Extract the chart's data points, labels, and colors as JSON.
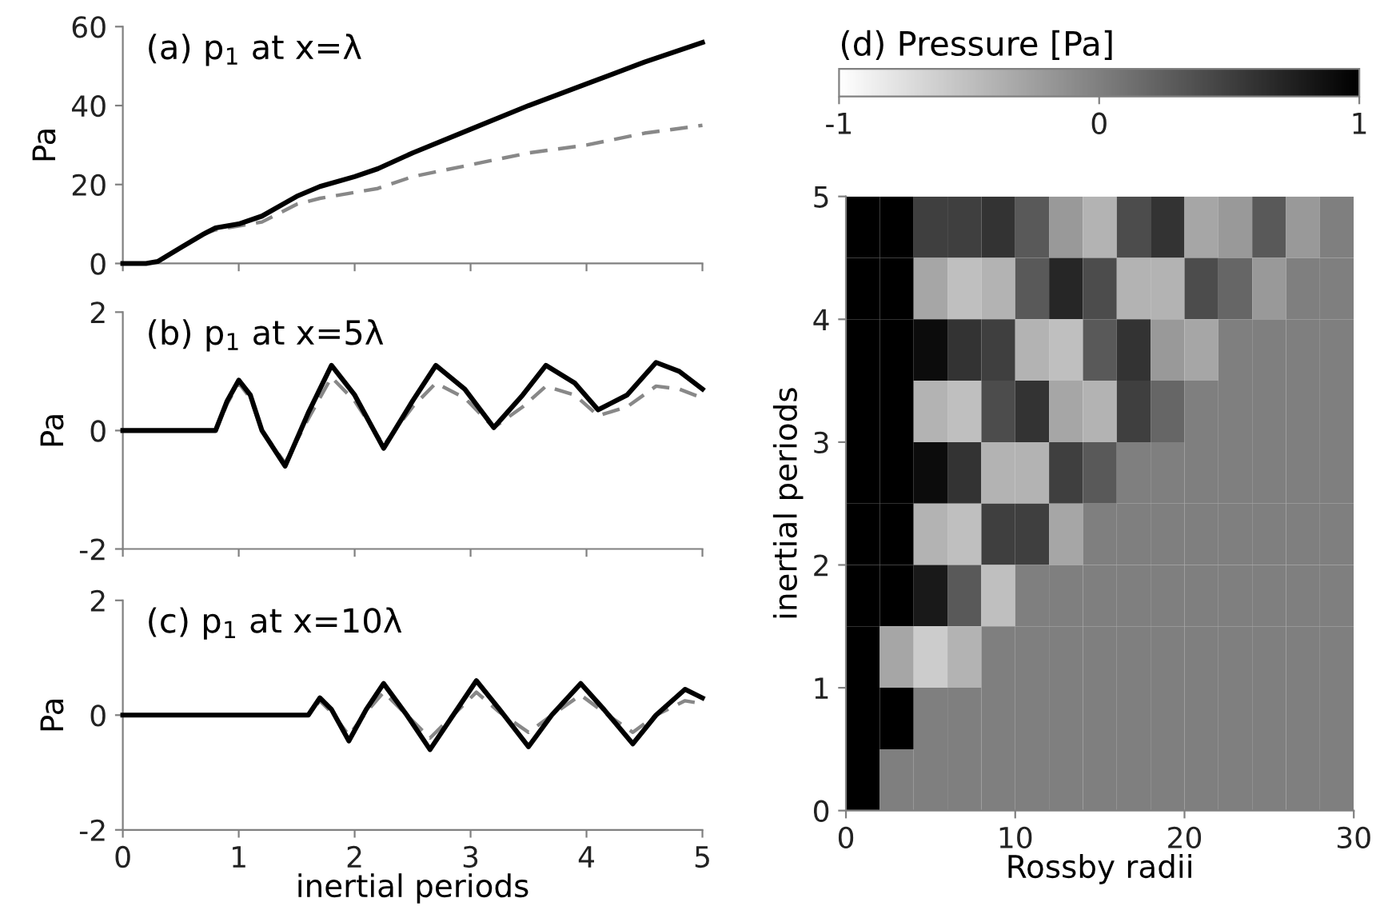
{
  "chart_data": [
    {
      "type": "line",
      "title": "(a) p$_{1}$ at x=λ",
      "ylabel": "Pa",
      "xlim": [
        0,
        5
      ],
      "xticks": [
        0,
        1,
        2,
        3,
        4,
        5
      ],
      "ylim": [
        0,
        60
      ],
      "yticks": [
        0,
        20,
        40,
        60
      ],
      "tick_labels": "y",
      "grid": false,
      "series": [
        {
          "color": "#000000",
          "line_style": "solid",
          "x": [
            0,
            0.2,
            0.3,
            0.5,
            0.7,
            0.8,
            1.0,
            1.2,
            1.5,
            1.7,
            2.0,
            2.2,
            2.5,
            3,
            3.5,
            4,
            4.5,
            5
          ],
          "values": [
            0,
            0,
            0.5,
            4,
            7.5,
            9,
            10,
            12,
            17,
            19.5,
            22,
            24,
            28,
            34,
            40,
            45.5,
            51,
            56
          ]
        },
        {
          "color": "#888888",
          "line_style": "dashed",
          "x": [
            0,
            0.2,
            0.3,
            0.5,
            0.7,
            0.8,
            1.0,
            1.2,
            1.5,
            1.7,
            2.0,
            2.2,
            2.5,
            3,
            3.5,
            4,
            4.5,
            5
          ],
          "values": [
            0,
            0,
            0.5,
            4,
            7.5,
            8.5,
            9.5,
            10.5,
            15,
            16.5,
            18,
            19,
            22,
            25,
            28,
            30,
            33,
            35
          ]
        }
      ]
    },
    {
      "type": "line",
      "title": "(b) p$_{1}$ at x=5λ",
      "ylabel": "Pa",
      "xlim": [
        0,
        5
      ],
      "xticks": [
        0,
        1,
        2,
        3,
        4,
        5
      ],
      "ylim": [
        -2,
        2
      ],
      "yticks": [
        -2,
        0,
        2
      ],
      "tick_labels": "y",
      "grid": false,
      "series": [
        {
          "color": "#000000",
          "line_style": "solid",
          "x": [
            0,
            0.8,
            0.9,
            1.0,
            1.1,
            1.2,
            1.4,
            1.6,
            1.8,
            2.0,
            2.25,
            2.5,
            2.7,
            2.95,
            3.2,
            3.45,
            3.65,
            3.9,
            4.1,
            4.35,
            4.6,
            4.8,
            5
          ],
          "values": [
            0,
            0,
            0.5,
            0.85,
            0.6,
            0,
            -0.6,
            0.3,
            1.1,
            0.6,
            -0.3,
            0.5,
            1.1,
            0.7,
            0.05,
            0.6,
            1.1,
            0.8,
            0.35,
            0.6,
            1.15,
            1.0,
            0.7
          ]
        },
        {
          "color": "#888888",
          "line_style": "dashed",
          "x": [
            0,
            0.8,
            0.9,
            1.0,
            1.1,
            1.2,
            1.4,
            1.6,
            1.8,
            2.0,
            2.25,
            2.5,
            2.7,
            2.95,
            3.2,
            3.45,
            3.65,
            3.9,
            4.1,
            4.35,
            4.6,
            4.8,
            5
          ],
          "values": [
            0,
            0,
            0.45,
            0.8,
            0.55,
            0,
            -0.55,
            0.2,
            0.9,
            0.5,
            -0.25,
            0.4,
            0.8,
            0.55,
            0.05,
            0.4,
            0.75,
            0.6,
            0.25,
            0.4,
            0.75,
            0.7,
            0.55
          ]
        }
      ]
    },
    {
      "type": "line",
      "title": "(c) p$_{1}$ at x=10λ",
      "xlabel": "inertial periods",
      "ylabel": "Pa",
      "xlim": [
        0,
        5
      ],
      "xticks": [
        0,
        1,
        2,
        3,
        4,
        5
      ],
      "ylim": [
        -2,
        2
      ],
      "yticks": [
        -2,
        0,
        2
      ],
      "grid": false,
      "series": [
        {
          "color": "#000000",
          "line_style": "solid",
          "x": [
            0,
            1.6,
            1.7,
            1.8,
            1.95,
            2.1,
            2.25,
            2.45,
            2.65,
            2.85,
            3.05,
            3.25,
            3.5,
            3.7,
            3.95,
            4.15,
            4.4,
            4.6,
            4.85,
            5
          ],
          "values": [
            0,
            0,
            0.3,
            0.1,
            -0.45,
            0.1,
            0.55,
            0.0,
            -0.6,
            0,
            0.6,
            0.1,
            -0.55,
            0,
            0.55,
            0.1,
            -0.5,
            0,
            0.45,
            0.3
          ]
        },
        {
          "color": "#888888",
          "line_style": "dashed",
          "x": [
            0,
            1.6,
            1.7,
            1.8,
            1.95,
            2.1,
            2.25,
            2.45,
            2.65,
            2.85,
            3.05,
            3.25,
            3.5,
            3.7,
            3.95,
            4.15,
            4.4,
            4.6,
            4.85,
            5
          ],
          "values": [
            0,
            0,
            0.25,
            0.05,
            -0.35,
            0.05,
            0.4,
            0.0,
            -0.4,
            0,
            0.4,
            0.05,
            -0.3,
            0,
            0.35,
            0.05,
            -0.3,
            0,
            0.25,
            0.2
          ]
        }
      ]
    },
    {
      "type": "heatmap",
      "clabel": "(d) Pressure [Pa]",
      "xlabel": "Rossby radii",
      "ylabel": "inertial periods",
      "xlim": [
        0,
        30
      ],
      "xticks": [
        0,
        10,
        20,
        30
      ],
      "ylim": [
        0,
        5
      ],
      "yticks": [
        0,
        1,
        2,
        3,
        4,
        5
      ],
      "clim": [
        -1,
        1
      ],
      "cticks": [
        -1,
        0,
        1
      ],
      "cells": [
        [
          1,
          1,
          0.5,
          0.5,
          0.6,
          0.3,
          -0.2,
          -0.4,
          0.4,
          0.6,
          -0.3,
          -0.2,
          0.3,
          -0.2,
          0
        ],
        [
          1,
          1,
          -0.3,
          -0.5,
          -0.4,
          0.3,
          0.7,
          0.4,
          -0.4,
          -0.4,
          0.4,
          0.2,
          -0.2,
          0,
          0
        ],
        [
          1,
          1,
          0.9,
          0.6,
          0.5,
          -0.4,
          -0.5,
          0.3,
          0.6,
          -0.2,
          -0.3,
          0,
          0,
          0,
          0
        ],
        [
          1,
          1,
          -0.4,
          -0.5,
          0.4,
          0.6,
          -0.3,
          -0.4,
          0.5,
          0.2,
          0,
          0,
          0,
          0,
          0
        ],
        [
          1,
          1,
          0.9,
          0.6,
          -0.4,
          -0.4,
          0.5,
          0.3,
          0,
          0,
          0,
          0,
          0,
          0,
          0
        ],
        [
          1,
          1,
          -0.4,
          -0.5,
          0.5,
          0.5,
          -0.3,
          0,
          0,
          0,
          0,
          0,
          0,
          0,
          0
        ],
        [
          1,
          1,
          0.8,
          0.3,
          -0.5,
          0,
          0,
          0,
          0,
          0,
          0,
          0,
          0,
          0,
          0
        ],
        [
          1,
          -0.3,
          -0.6,
          -0.4,
          0,
          0,
          0,
          0,
          0,
          0,
          0,
          0,
          0,
          0,
          0
        ],
        [
          1,
          1,
          0,
          0,
          0,
          0,
          0,
          0,
          0,
          0,
          0,
          0,
          0,
          0,
          0
        ],
        [
          1,
          0,
          0,
          0,
          0,
          0,
          0,
          0,
          0,
          0,
          0,
          0,
          0,
          0,
          0
        ]
      ]
    }
  ]
}
